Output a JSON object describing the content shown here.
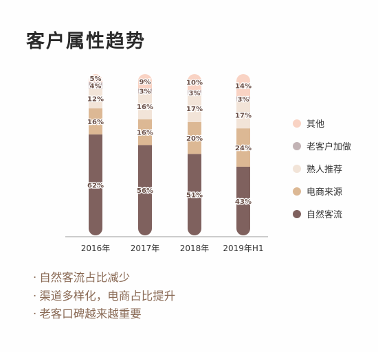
{
  "title": "客户属性趋势",
  "notes": [
    "自然客流占比减少",
    "渠道多样化，电商占比提升",
    "老客口碑越来越重要"
  ],
  "chart_data": {
    "type": "bar",
    "stacked": true,
    "percent": true,
    "categories": [
      "2016年",
      "2017年",
      "2018年",
      "2019年H1"
    ],
    "series": [
      {
        "name": "自然客流",
        "color": "#7f615e",
        "values": [
          62,
          56,
          51,
          43
        ]
      },
      {
        "name": "电商来源",
        "color": "#dcb894",
        "values": [
          16,
          16,
          20,
          24
        ]
      },
      {
        "name": "熟人推荐",
        "color": "#f2e4d8",
        "values": [
          12,
          16,
          17,
          17
        ]
      },
      {
        "name": "老客户加做",
        "color": "#c2b3b5",
        "values": [
          4,
          3,
          3,
          3
        ]
      },
      {
        "name": "其他",
        "color": "#f9d3c4",
        "values": [
          5,
          9,
          10,
          14
        ]
      }
    ],
    "legend_order": [
      "其他",
      "老客户加做",
      "熟人推荐",
      "电商来源",
      "自然客流"
    ],
    "legend_position": "right",
    "ylim": [
      0,
      100
    ],
    "grid": false
  }
}
